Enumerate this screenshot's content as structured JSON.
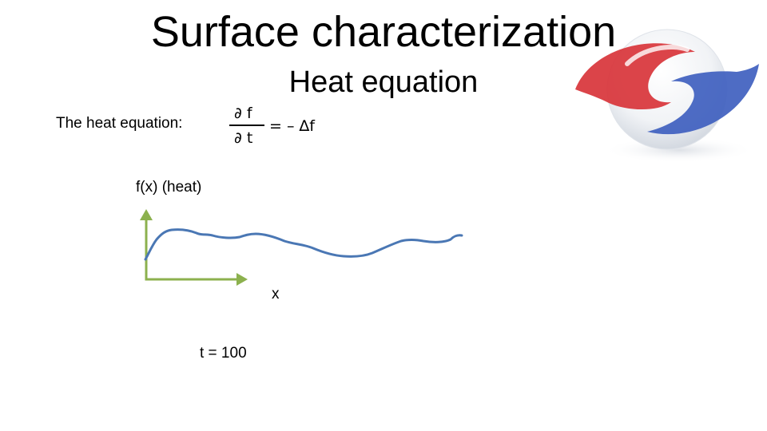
{
  "slide": {
    "title": "Surface characterization",
    "subtitle": "Heat equation"
  },
  "equation": {
    "label": "The heat equation:",
    "numerator": "∂ f",
    "denominator": "∂ t",
    "rhs": "= – ∆f"
  },
  "plot": {
    "y_label": "f(x)  (heat)",
    "x_label": "x",
    "time_label": "t = 100",
    "axis_color": "#8cb14e",
    "curve_color": "#4a77b4"
  },
  "logo": {
    "icon": "swirl-sphere-logo",
    "colors": [
      "#d8343a",
      "#3f5fbf"
    ]
  }
}
